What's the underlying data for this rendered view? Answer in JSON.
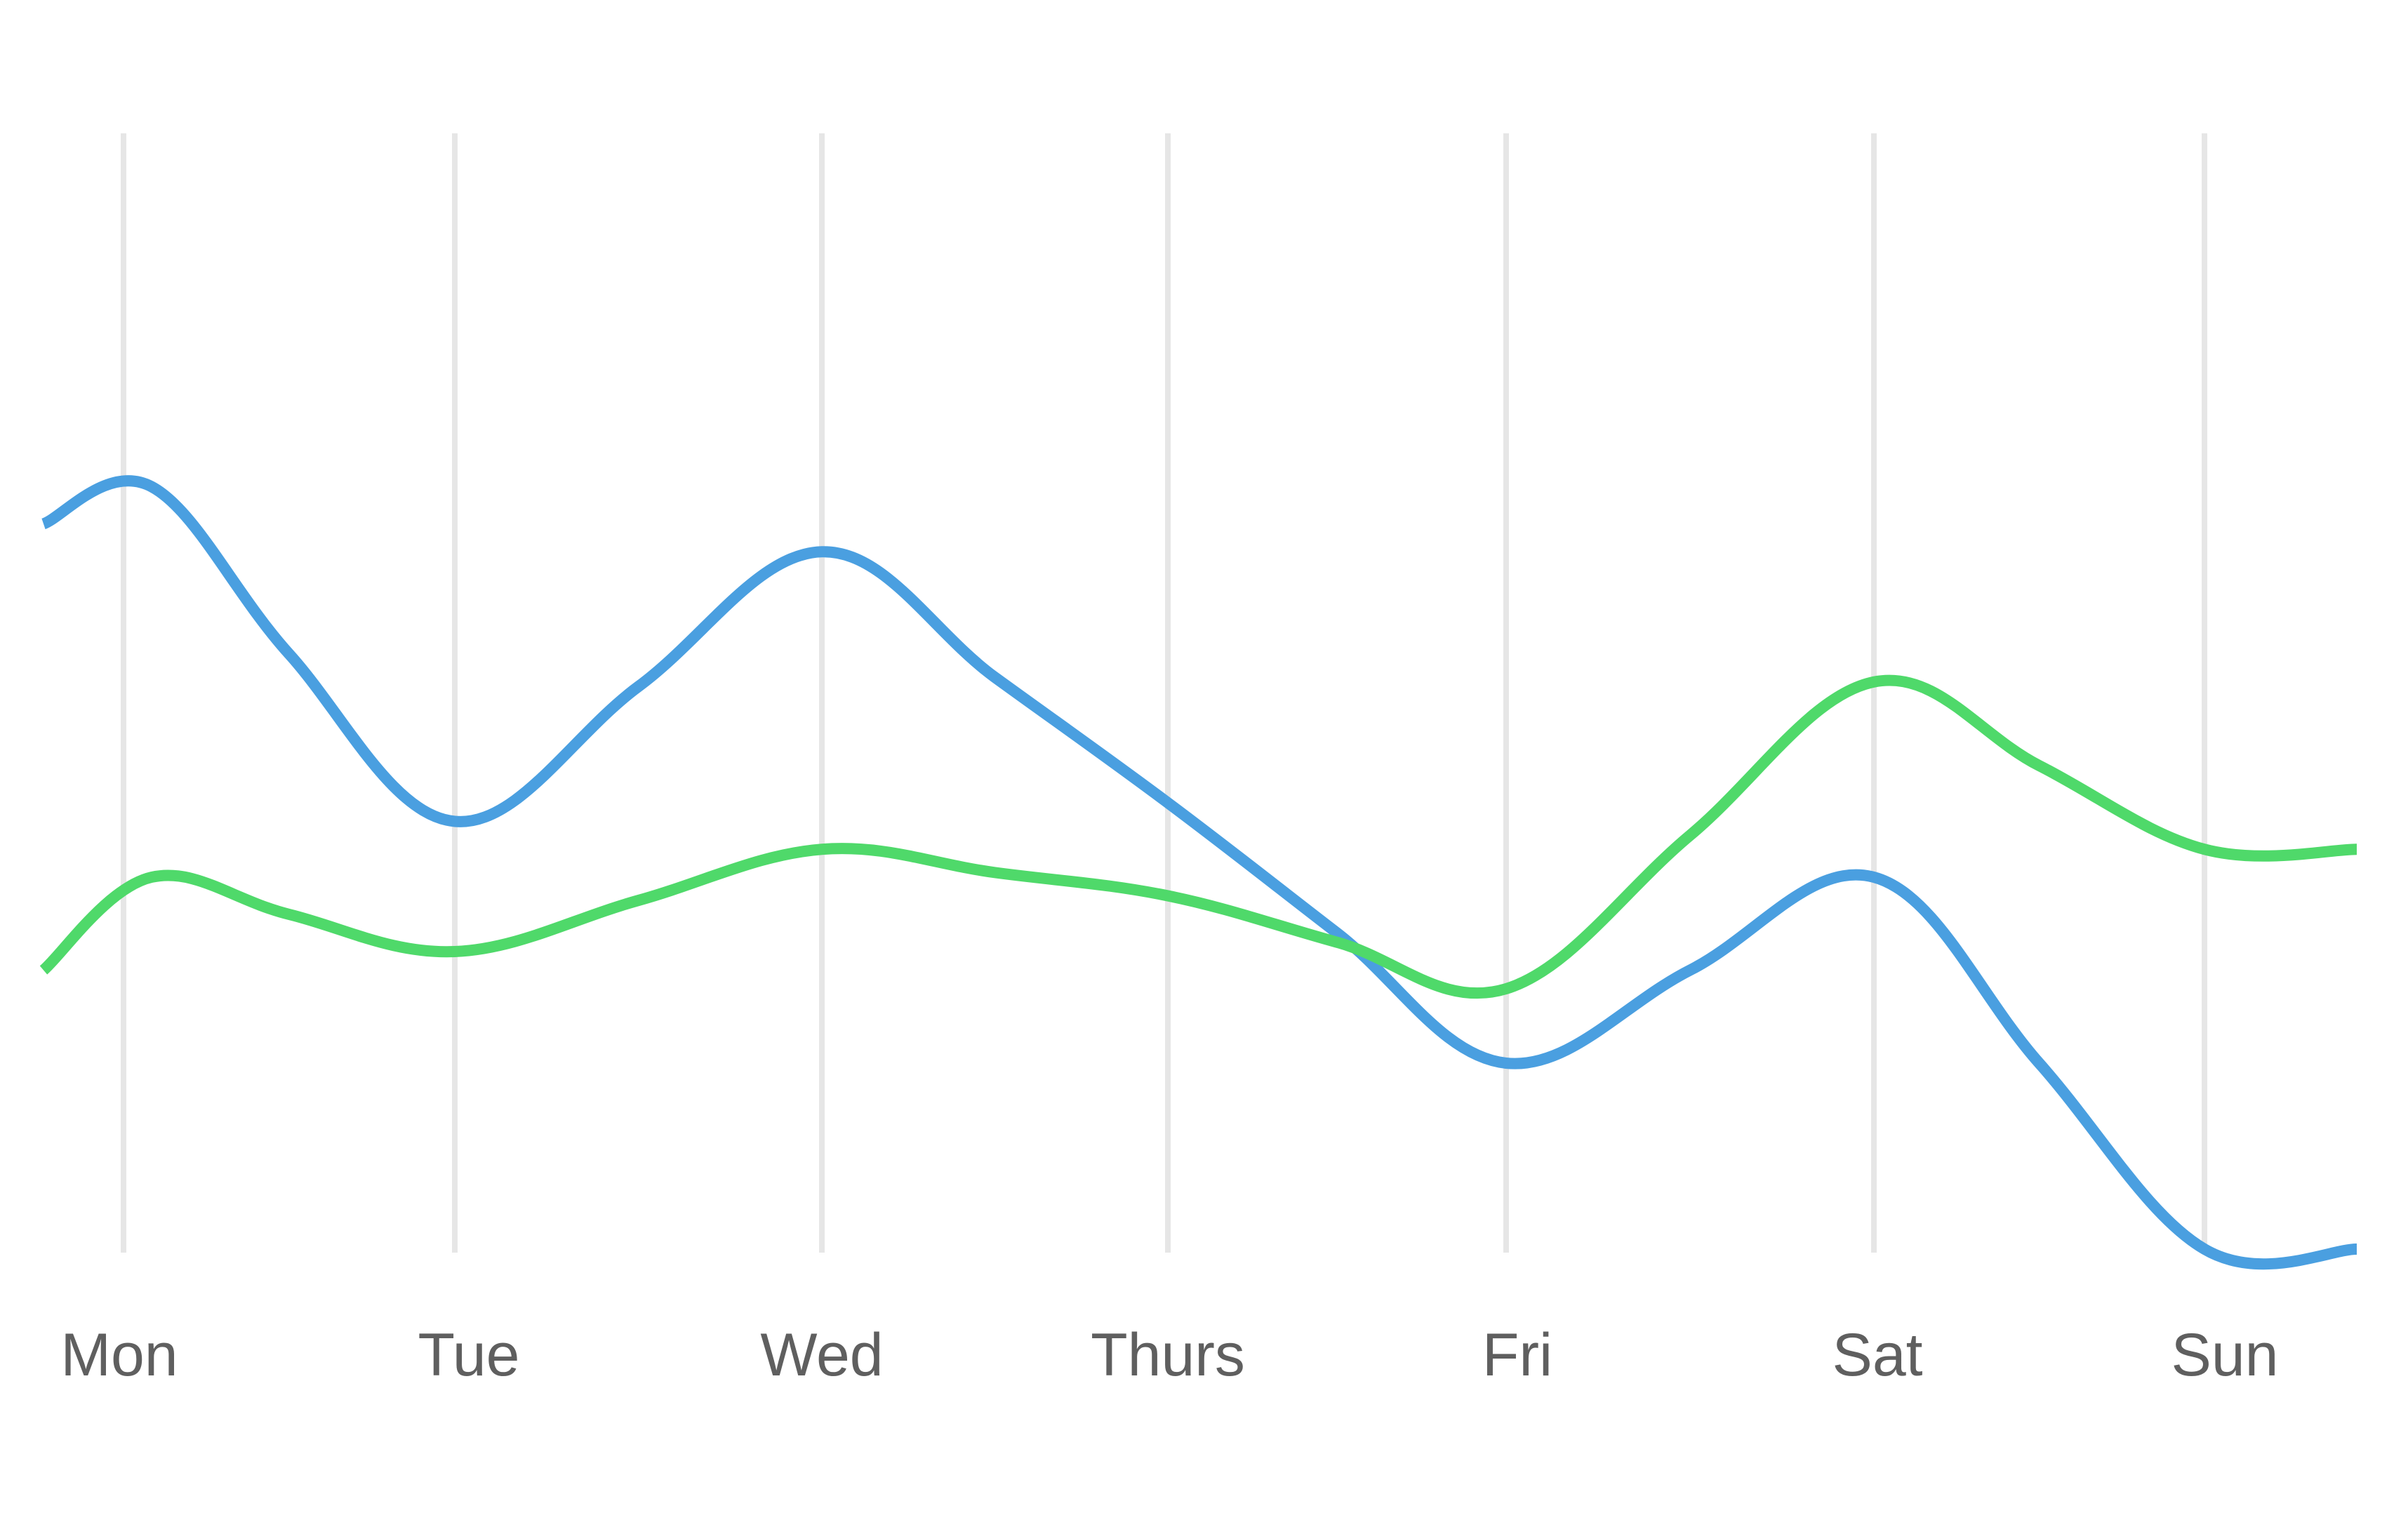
{
  "chart_data": {
    "type": "line",
    "categories": [
      "Mon",
      "Tue",
      "Wed",
      "Thurs",
      "Fri",
      "Sat",
      "Sun"
    ],
    "ylim": [
      0,
      100
    ],
    "grid": {
      "vertical": true,
      "horizontal": false
    },
    "legend": "none",
    "series": [
      {
        "color": "#4a9fe0",
        "values": [
          82,
          46,
          75,
          48,
          20,
          40,
          0
        ]
      },
      {
        "color": "#4fd96a",
        "values": [
          40,
          32,
          43,
          38,
          28,
          61,
          43
        ]
      }
    ]
  },
  "style": {
    "grid_color": "#e6e6e6",
    "label_color": "#5f5f5f"
  }
}
